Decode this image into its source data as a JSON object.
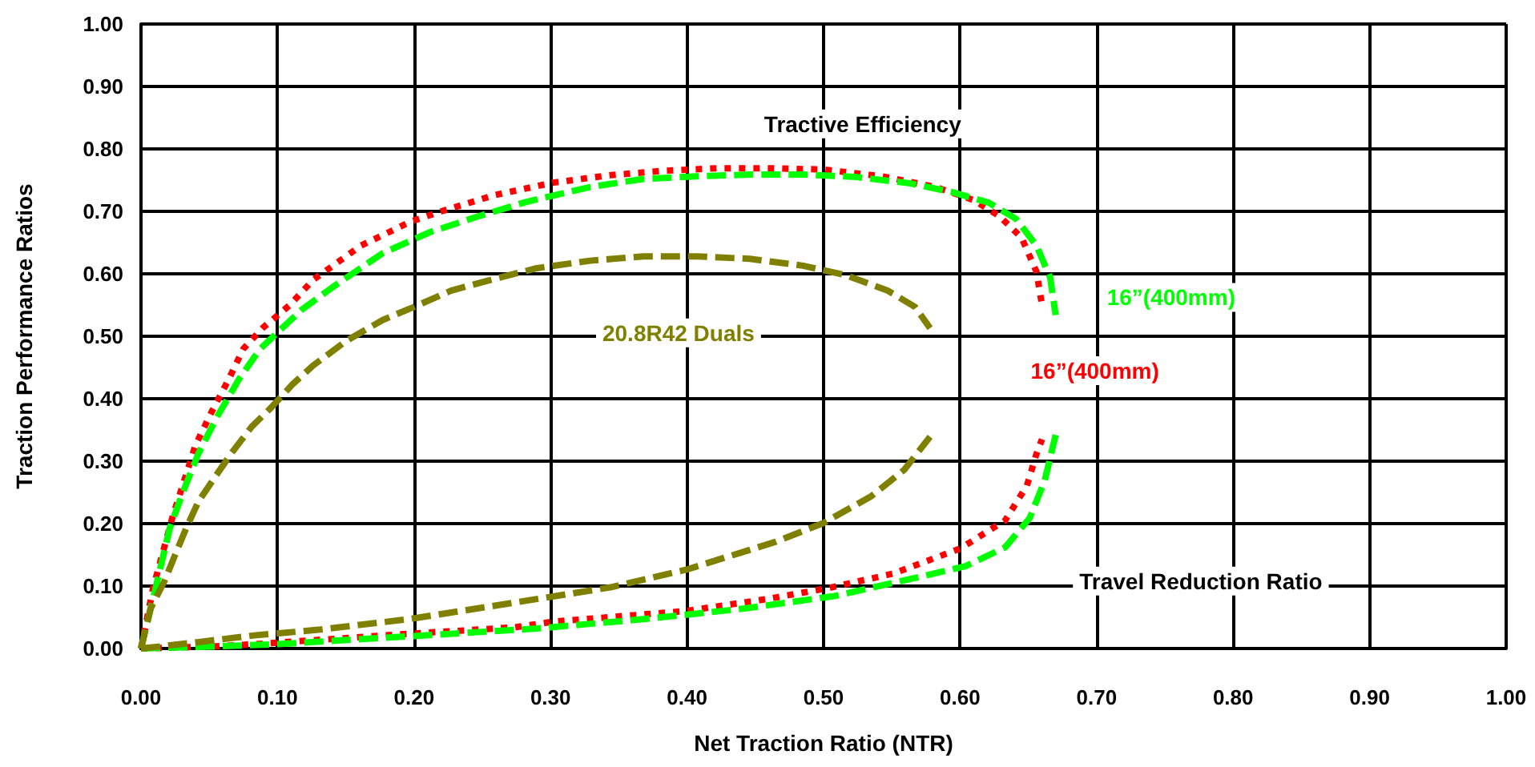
{
  "chart_data": {
    "type": "line",
    "xlabel": "Net Traction Ratio (NTR)",
    "ylabel": "Traction Performance Ratios",
    "annotations": [
      "Tractive Efficiency",
      "Travel Reduction Ratio"
    ],
    "xlim": [
      0,
      1
    ],
    "ylim": [
      0,
      1
    ],
    "xticks": [
      {
        "value": 0,
        "label": "0.00"
      },
      {
        "value": 0.1,
        "label": "0.10"
      },
      {
        "value": 0.2,
        "label": "0.20"
      },
      {
        "value": 0.3,
        "label": "0.30"
      },
      {
        "value": 0.4,
        "label": "0.40"
      },
      {
        "value": 0.5,
        "label": "0.50"
      },
      {
        "value": 0.6,
        "label": "0.60"
      },
      {
        "value": 0.7,
        "label": "0.70"
      },
      {
        "value": 0.8,
        "label": "0.80"
      },
      {
        "value": 0.9,
        "label": "0.90"
      },
      {
        "value": 1,
        "label": "1.00"
      }
    ],
    "yticks": [
      {
        "value": 0,
        "label": "0.00"
      },
      {
        "value": 0.1,
        "label": "0.10"
      },
      {
        "value": 0.2,
        "label": "0.20"
      },
      {
        "value": 0.3,
        "label": "0.30"
      },
      {
        "value": 0.4,
        "label": "0.40"
      },
      {
        "value": 0.5,
        "label": "0.50"
      },
      {
        "value": 0.6,
        "label": "0.60"
      },
      {
        "value": 0.7,
        "label": "0.70"
      },
      {
        "value": 0.8,
        "label": "0.80"
      },
      {
        "value": 0.9,
        "label": "0.90"
      },
      {
        "value": 1,
        "label": "1.00"
      }
    ],
    "grid": true,
    "legend": false,
    "marker": "none",
    "series": [
      {
        "name": "16”(400mm)",
        "color": "#ff0000",
        "line_style": "dotted",
        "x": [
          0,
          0.009,
          0.023,
          0.033,
          0.04,
          0.052,
          0.064,
          0.075,
          0.089,
          0.109,
          0.126,
          0.161,
          0.198,
          0.22,
          0.259,
          0.302,
          0.344,
          0.383,
          0.422,
          0.461,
          0.5,
          0.543,
          0.582,
          0.61,
          0.629,
          0.645,
          0.656,
          0.66
        ],
        "values": [
          0,
          0.098,
          0.21,
          0.278,
          0.326,
          0.38,
          0.43,
          0.48,
          0.513,
          0.55,
          0.59,
          0.645,
          0.684,
          0.7,
          0.726,
          0.746,
          0.758,
          0.765,
          0.769,
          0.769,
          0.767,
          0.756,
          0.739,
          0.718,
          0.692,
          0.658,
          0.603,
          0.55
        ]
      },
      {
        "name": "16”(400mm)",
        "color": "#00ff00",
        "line_style": "dashed",
        "x": [
          0,
          0.009,
          0.021,
          0.031,
          0.042,
          0.056,
          0.072,
          0.087,
          0.099,
          0.118,
          0.142,
          0.177,
          0.212,
          0.247,
          0.282,
          0.329,
          0.368,
          0.407,
          0.446,
          0.485,
          0.524,
          0.563,
          0.594,
          0.621,
          0.641,
          0.656,
          0.666,
          0.67
        ],
        "values": [
          0,
          0.081,
          0.192,
          0.252,
          0.312,
          0.372,
          0.432,
          0.479,
          0.504,
          0.543,
          0.581,
          0.633,
          0.667,
          0.692,
          0.715,
          0.739,
          0.752,
          0.756,
          0.759,
          0.759,
          0.755,
          0.745,
          0.731,
          0.714,
          0.688,
          0.645,
          0.594,
          0.534
        ]
      },
      {
        "name": "20.8R42 Duals",
        "color": "#808000",
        "line_style": "dashed",
        "x": [
          0,
          0.007,
          0.017,
          0.025,
          0.033,
          0.042,
          0.054,
          0.066,
          0.081,
          0.095,
          0.111,
          0.126,
          0.15,
          0.177,
          0.2,
          0.227,
          0.259,
          0.29,
          0.329,
          0.368,
          0.407,
          0.446,
          0.485,
          0.516,
          0.547,
          0.567,
          0.578
        ],
        "values": [
          0,
          0.064,
          0.107,
          0.15,
          0.192,
          0.235,
          0.274,
          0.312,
          0.355,
          0.385,
          0.423,
          0.453,
          0.492,
          0.526,
          0.547,
          0.573,
          0.592,
          0.609,
          0.621,
          0.628,
          0.628,
          0.624,
          0.613,
          0.598,
          0.573,
          0.547,
          0.513
        ]
      },
      {
        "color": "#ff0000",
        "line_style": "dotted",
        "x": [
          0,
          0.05,
          0.091,
          0.192,
          0.274,
          0.302,
          0.399,
          0.458,
          0.504,
          0.551,
          0.6,
          0.633,
          0.649,
          0.656,
          0.66
        ],
        "values": [
          0,
          0.003,
          0.008,
          0.023,
          0.034,
          0.043,
          0.06,
          0.079,
          0.097,
          0.12,
          0.16,
          0.205,
          0.261,
          0.312,
          0.335
        ]
      },
      {
        "color": "#00ff00",
        "line_style": "dashed",
        "x": [
          0,
          0.05,
          0.1,
          0.2,
          0.29,
          0.368,
          0.442,
          0.508,
          0.563,
          0.604,
          0.633,
          0.651,
          0.662,
          0.67
        ],
        "values": [
          0,
          0.003,
          0.007,
          0.02,
          0.032,
          0.047,
          0.064,
          0.084,
          0.111,
          0.132,
          0.162,
          0.209,
          0.269,
          0.342
        ]
      },
      {
        "color": "#808000",
        "line_style": "dashed",
        "x": [
          0,
          0.033,
          0.083,
          0.13,
          0.196,
          0.272,
          0.344,
          0.399,
          0.465,
          0.5,
          0.535,
          0.559,
          0.578
        ],
        "values": [
          0,
          0.008,
          0.021,
          0.03,
          0.047,
          0.073,
          0.098,
          0.126,
          0.171,
          0.201,
          0.244,
          0.286,
          0.339
        ]
      }
    ]
  }
}
